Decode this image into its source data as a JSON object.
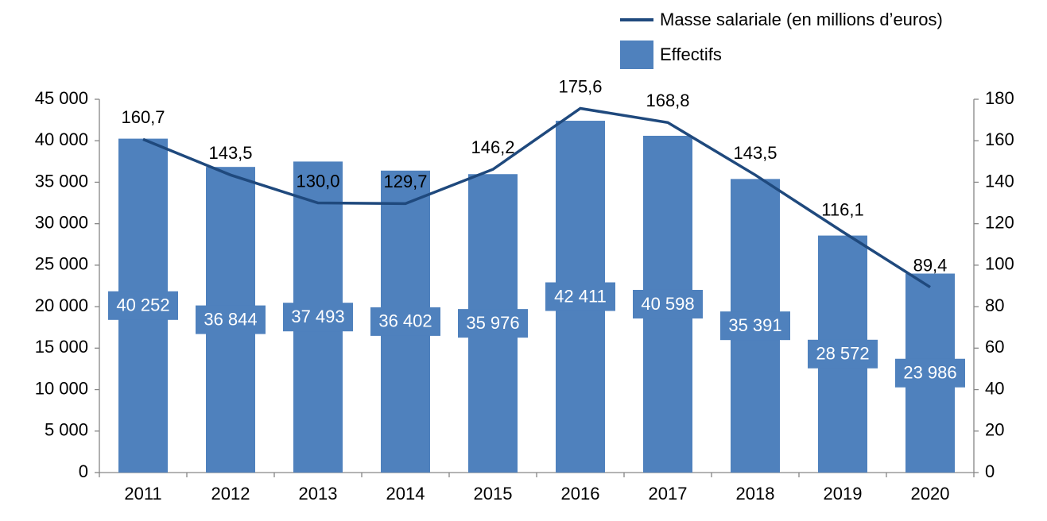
{
  "chart_data": {
    "type": "bar-line",
    "categories": [
      "2011",
      "2012",
      "2013",
      "2014",
      "2015",
      "2016",
      "2017",
      "2018",
      "2019",
      "2020"
    ],
    "series": [
      {
        "name": "Effectifs",
        "type": "bar",
        "axis": "y",
        "color": "#4f81bd",
        "values": [
          40252,
          36844,
          37493,
          36402,
          35976,
          42411,
          40598,
          35391,
          28572,
          23986
        ],
        "value_labels": [
          "40 252",
          "36 844",
          "37 493",
          "36 402",
          "35 976",
          "42 411",
          "40 598",
          "35 391",
          "28 572",
          "23 986"
        ]
      },
      {
        "name": "Masse salariale (en millions d’euros)",
        "type": "line",
        "axis": "y2",
        "color": "#1f497d",
        "values": [
          160.7,
          143.5,
          130.0,
          129.7,
          146.2,
          175.6,
          168.8,
          143.5,
          116.1,
          89.4
        ],
        "value_labels": [
          "160,7",
          "143,5",
          "130,0",
          "129,7",
          "146,2",
          "175,6",
          "168,8",
          "143,5",
          "116,1",
          "89,4"
        ]
      }
    ],
    "ylim": [
      0,
      45000
    ],
    "yticks": [
      {
        "value": 0,
        "label": "0"
      },
      {
        "value": 5000,
        "label": "5 000"
      },
      {
        "value": 10000,
        "label": "10 000"
      },
      {
        "value": 15000,
        "label": "15 000"
      },
      {
        "value": 20000,
        "label": "20 000"
      },
      {
        "value": 25000,
        "label": "25 000"
      },
      {
        "value": 30000,
        "label": "30 000"
      },
      {
        "value": 35000,
        "label": "35 000"
      },
      {
        "value": 40000,
        "label": "40 000"
      },
      {
        "value": 45000,
        "label": "45 000"
      }
    ],
    "y2lim": [
      0,
      180
    ],
    "y2ticks": [
      0,
      20,
      40,
      60,
      80,
      100,
      120,
      140,
      160,
      180
    ],
    "grid": false,
    "legend": "top-right"
  }
}
